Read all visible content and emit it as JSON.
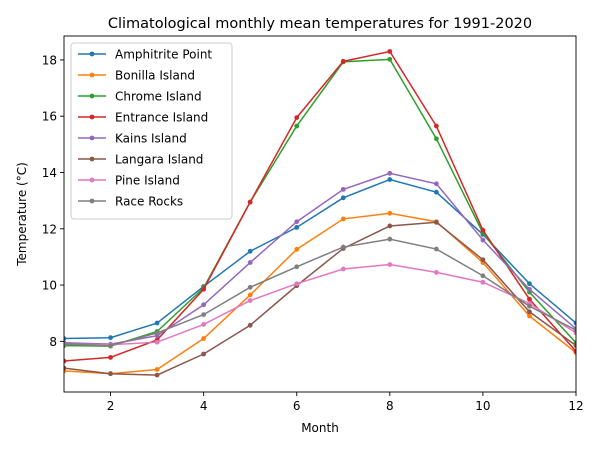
{
  "chart_data": {
    "type": "line",
    "title": "Climatological monthly mean temperatures for 1991-2020",
    "xlabel": "Month",
    "ylabel": "Temperature (°C)",
    "xlim": [
      1,
      12
    ],
    "ylim": [
      6.2,
      18.85
    ],
    "xticks": [
      2,
      4,
      6,
      8,
      10,
      12
    ],
    "yticks": [
      8,
      10,
      12,
      14,
      16,
      18
    ],
    "grid": false,
    "legend_position": "upper left",
    "x": [
      1,
      2,
      3,
      4,
      5,
      6,
      7,
      8,
      9,
      10,
      11,
      12
    ],
    "series": [
      {
        "name": "Amphitrite Point",
        "color": "#1f77b4",
        "values": [
          8.1,
          8.13,
          8.65,
          9.95,
          11.2,
          12.05,
          13.1,
          13.75,
          13.3,
          11.8,
          10.05,
          8.65
        ]
      },
      {
        "name": "Bonilla Island",
        "color": "#ff7f0e",
        "values": [
          6.95,
          6.85,
          7.0,
          8.1,
          9.65,
          11.27,
          12.35,
          12.55,
          12.25,
          10.8,
          8.9,
          7.6
        ]
      },
      {
        "name": "Chrome Island",
        "color": "#2ca02c",
        "values": [
          7.85,
          7.83,
          8.35,
          9.9,
          12.95,
          15.65,
          17.93,
          18.02,
          15.2,
          11.85,
          9.75,
          7.95
        ]
      },
      {
        "name": "Entrance Island",
        "color": "#d62728",
        "values": [
          7.3,
          7.43,
          8.05,
          9.85,
          12.95,
          15.95,
          17.95,
          18.3,
          15.65,
          11.95,
          9.5,
          7.65
        ]
      },
      {
        "name": "Kains Island",
        "color": "#9467bd",
        "values": [
          7.95,
          7.9,
          8.2,
          9.3,
          10.8,
          12.25,
          13.4,
          13.97,
          13.6,
          11.6,
          9.85,
          8.45
        ]
      },
      {
        "name": "Langara Island",
        "color": "#8c564b",
        "values": [
          7.05,
          6.85,
          6.8,
          7.55,
          8.57,
          9.98,
          11.3,
          12.1,
          12.23,
          10.9,
          9.05,
          7.85
        ]
      },
      {
        "name": "Pine Island",
        "color": "#e377c2",
        "values": [
          7.9,
          7.88,
          7.97,
          8.6,
          9.45,
          10.05,
          10.57,
          10.73,
          10.45,
          10.1,
          9.35,
          8.3
        ]
      },
      {
        "name": "Race Rocks",
        "color": "#7f7f7f",
        "values": [
          7.9,
          7.85,
          8.3,
          8.95,
          9.92,
          10.65,
          11.35,
          11.63,
          11.28,
          10.33,
          9.25,
          8.4
        ]
      }
    ]
  }
}
